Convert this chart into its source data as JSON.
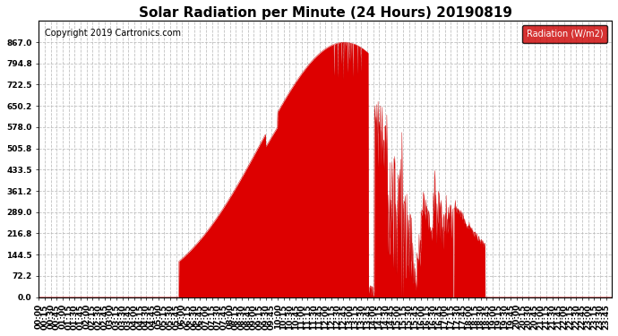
{
  "title": "Solar Radiation per Minute (24 Hours) 20190819",
  "copyright": "Copyright 2019 Cartronics.com",
  "legend_label": "Radiation (W/m2)",
  "y_ticks": [
    0.0,
    72.2,
    144.5,
    216.8,
    289.0,
    361.2,
    433.5,
    505.8,
    578.0,
    650.2,
    722.5,
    794.8,
    867.0
  ],
  "ylim": [
    0,
    940.0
  ],
  "fill_color": "#dd0000",
  "line_color": "#cc0000",
  "background_color": "#ffffff",
  "grid_color": "#bbbbbb",
  "legend_bg": "#cc0000",
  "legend_text_color": "#ffffff",
  "title_fontsize": 11,
  "copyright_fontsize": 7,
  "axis_fontsize": 7,
  "tick_fontsize": 6.5
}
